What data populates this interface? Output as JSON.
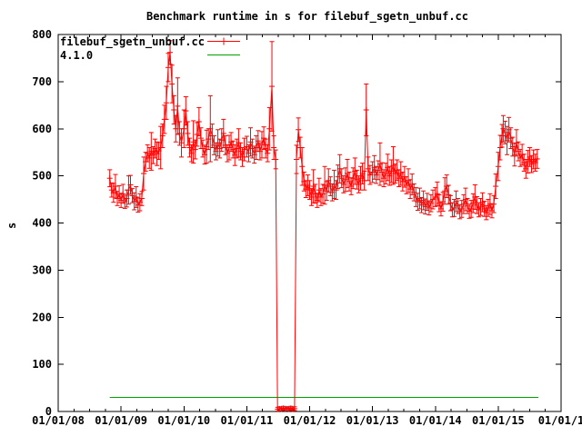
{
  "chart_data": {
    "type": "line",
    "title": "Benchmark runtime in s for filebuf_sgetn_unbuf.cc",
    "xlabel": "",
    "ylabel": "s",
    "ylim": [
      0,
      800
    ],
    "ytick_values": [
      0,
      100,
      200,
      300,
      400,
      500,
      600,
      700,
      800
    ],
    "ytick_labels": [
      "0",
      "100",
      "200",
      "300",
      "400",
      "500",
      "600",
      "700",
      "800"
    ],
    "xlim_years": [
      2008,
      2016
    ],
    "xtick_years": [
      2008,
      2009,
      2010,
      2011,
      2012,
      2013,
      2014,
      2015,
      2016
    ],
    "xtick_labels": [
      "01/01/08",
      "01/01/09",
      "01/01/10",
      "01/01/11",
      "01/01/12",
      "01/01/13",
      "01/01/14",
      "01/01/15",
      "01/01/1"
    ],
    "x_minor_ticks_per_year": 4,
    "grid": false,
    "legend_position": "top-left",
    "axis_color": "#000000",
    "series": [
      {
        "name": "filebuf_sgetn_unbuf.cc",
        "color": "#ff0000",
        "style": "errorlines-plus",
        "points": [
          [
            2008.82,
            495,
            18
          ],
          [
            2008.85,
            470,
            15
          ],
          [
            2008.88,
            464,
            20
          ],
          [
            2008.91,
            478,
            25
          ],
          [
            2008.94,
            452,
            15
          ],
          [
            2008.97,
            461,
            18
          ],
          [
            2009.0,
            448,
            15
          ],
          [
            2009.03,
            462,
            20
          ],
          [
            2009.06,
            445,
            14
          ],
          [
            2009.09,
            452,
            18
          ],
          [
            2009.12,
            470,
            30
          ],
          [
            2009.15,
            481,
            20
          ],
          [
            2009.18,
            458,
            15
          ],
          [
            2009.21,
            446,
            18
          ],
          [
            2009.24,
            455,
            22
          ],
          [
            2009.27,
            438,
            15
          ],
          [
            2009.3,
            444,
            18
          ],
          [
            2009.33,
            452,
            15
          ],
          [
            2009.36,
            505,
            35
          ],
          [
            2009.39,
            530,
            20
          ],
          [
            2009.42,
            548,
            18
          ],
          [
            2009.45,
            538,
            22
          ],
          [
            2009.48,
            552,
            40
          ],
          [
            2009.51,
            544,
            18
          ],
          [
            2009.54,
            558,
            20
          ],
          [
            2009.57,
            547,
            25
          ],
          [
            2009.6,
            553,
            18
          ],
          [
            2009.63,
            560,
            45
          ],
          [
            2009.66,
            585,
            25
          ],
          [
            2009.69,
            620,
            30
          ],
          [
            2009.72,
            655,
            35
          ],
          [
            2009.75,
            730,
            30
          ],
          [
            2009.78,
            762,
            25
          ],
          [
            2009.81,
            695,
            40
          ],
          [
            2009.84,
            640,
            30
          ],
          [
            2009.87,
            600,
            28
          ],
          [
            2009.9,
            648,
            60
          ],
          [
            2009.93,
            590,
            25
          ],
          [
            2009.96,
            570,
            30
          ],
          [
            2010.0,
            600,
            40
          ],
          [
            2010.03,
            638,
            30
          ],
          [
            2010.06,
            590,
            25
          ],
          [
            2010.09,
            560,
            20
          ],
          [
            2010.12,
            548,
            18
          ],
          [
            2010.15,
            572,
            45
          ],
          [
            2010.18,
            556,
            20
          ],
          [
            2010.21,
            588,
            25
          ],
          [
            2010.24,
            615,
            30
          ],
          [
            2010.27,
            580,
            22
          ],
          [
            2010.3,
            558,
            18
          ],
          [
            2010.33,
            545,
            20
          ],
          [
            2010.36,
            562,
            35
          ],
          [
            2010.39,
            578,
            22
          ],
          [
            2010.42,
            600,
            70
          ],
          [
            2010.45,
            585,
            25
          ],
          [
            2010.48,
            565,
            20
          ],
          [
            2010.51,
            552,
            18
          ],
          [
            2010.54,
            570,
            28
          ],
          [
            2010.57,
            558,
            20
          ],
          [
            2010.6,
            576,
            24
          ],
          [
            2010.63,
            590,
            30
          ],
          [
            2010.66,
            565,
            20
          ],
          [
            2010.69,
            548,
            18
          ],
          [
            2010.72,
            560,
            26
          ],
          [
            2010.75,
            572,
            20
          ],
          [
            2010.78,
            556,
            18
          ],
          [
            2010.81,
            544,
            22
          ],
          [
            2010.84,
            558,
            20
          ],
          [
            2010.87,
            570,
            30
          ],
          [
            2010.9,
            552,
            18
          ],
          [
            2010.93,
            540,
            20
          ],
          [
            2010.96,
            556,
            24
          ],
          [
            2011.0,
            562,
            22
          ],
          [
            2011.03,
            548,
            18
          ],
          [
            2011.06,
            572,
            30
          ],
          [
            2011.09,
            558,
            20
          ],
          [
            2011.12,
            545,
            18
          ],
          [
            2011.15,
            560,
            25
          ],
          [
            2011.18,
            574,
            22
          ],
          [
            2011.21,
            552,
            18
          ],
          [
            2011.24,
            566,
            28
          ],
          [
            2011.27,
            580,
            24
          ],
          [
            2011.3,
            558,
            20
          ],
          [
            2011.33,
            548,
            18
          ],
          [
            2011.36,
            600,
            45
          ],
          [
            2011.4,
            690,
            95
          ],
          [
            2011.43,
            560,
            25
          ],
          [
            2011.46,
            535,
            20
          ],
          [
            2011.49,
            5,
            4
          ],
          [
            2011.52,
            6,
            4
          ],
          [
            2011.55,
            5,
            3
          ],
          [
            2011.58,
            7,
            4
          ],
          [
            2011.61,
            5,
            3
          ],
          [
            2011.64,
            6,
            4
          ],
          [
            2011.67,
            5,
            3
          ],
          [
            2011.7,
            7,
            4
          ],
          [
            2011.73,
            5,
            3
          ],
          [
            2011.76,
            6,
            4
          ],
          [
            2011.79,
            535,
            30
          ],
          [
            2011.82,
            598,
            25
          ],
          [
            2011.85,
            560,
            22
          ],
          [
            2011.88,
            520,
            40
          ],
          [
            2011.91,
            488,
            20
          ],
          [
            2011.94,
            472,
            18
          ],
          [
            2011.97,
            480,
            22
          ],
          [
            2012.0,
            470,
            20
          ],
          [
            2012.03,
            455,
            18
          ],
          [
            2012.06,
            478,
            35
          ],
          [
            2012.09,
            462,
            20
          ],
          [
            2012.12,
            448,
            15
          ],
          [
            2012.15,
            470,
            25
          ],
          [
            2012.18,
            455,
            18
          ],
          [
            2012.21,
            462,
            20
          ],
          [
            2012.24,
            480,
            40
          ],
          [
            2012.27,
            468,
            20
          ],
          [
            2012.3,
            490,
            25
          ],
          [
            2012.33,
            478,
            20
          ],
          [
            2012.36,
            465,
            18
          ],
          [
            2012.39,
            482,
            30
          ],
          [
            2012.42,
            470,
            20
          ],
          [
            2012.45,
            498,
            25
          ],
          [
            2012.48,
            515,
            30
          ],
          [
            2012.51,
            495,
            20
          ],
          [
            2012.54,
            482,
            18
          ],
          [
            2012.57,
            492,
            25
          ],
          [
            2012.6,
            505,
            30
          ],
          [
            2012.63,
            488,
            20
          ],
          [
            2012.66,
            478,
            18
          ],
          [
            2012.69,
            495,
            22
          ],
          [
            2012.72,
            510,
            28
          ],
          [
            2012.75,
            492,
            20
          ],
          [
            2012.78,
            482,
            18
          ],
          [
            2012.81,
            495,
            25
          ],
          [
            2012.84,
            505,
            22
          ],
          [
            2012.87,
            490,
            20
          ],
          [
            2012.9,
            640,
            55
          ],
          [
            2012.93,
            515,
            25
          ],
          [
            2012.96,
            502,
            20
          ],
          [
            2013.0,
            508,
            22
          ],
          [
            2013.03,
            518,
            25
          ],
          [
            2013.06,
            502,
            18
          ],
          [
            2013.09,
            512,
            20
          ],
          [
            2013.12,
            525,
            45
          ],
          [
            2013.15,
            508,
            20
          ],
          [
            2013.18,
            495,
            18
          ],
          [
            2013.21,
            505,
            22
          ],
          [
            2013.24,
            518,
            28
          ],
          [
            2013.27,
            500,
            20
          ],
          [
            2013.3,
            510,
            24
          ],
          [
            2013.33,
            522,
            40
          ],
          [
            2013.36,
            505,
            20
          ],
          [
            2013.39,
            512,
            22
          ],
          [
            2013.42,
            495,
            18
          ],
          [
            2013.45,
            505,
            25
          ],
          [
            2013.48,
            488,
            20
          ],
          [
            2013.51,
            498,
            22
          ],
          [
            2013.54,
            480,
            18
          ],
          [
            2013.57,
            490,
            25
          ],
          [
            2013.6,
            472,
            20
          ],
          [
            2013.63,
            482,
            22
          ],
          [
            2013.66,
            465,
            18
          ],
          [
            2013.69,
            455,
            20
          ],
          [
            2013.72,
            445,
            18
          ],
          [
            2013.75,
            452,
            22
          ],
          [
            2013.78,
            438,
            16
          ],
          [
            2013.81,
            448,
            20
          ],
          [
            2013.84,
            435,
            16
          ],
          [
            2013.87,
            445,
            18
          ],
          [
            2013.9,
            432,
            15
          ],
          [
            2013.93,
            442,
            18
          ],
          [
            2013.96,
            450,
            20
          ],
          [
            2014.0,
            455,
            20
          ],
          [
            2014.03,
            462,
            25
          ],
          [
            2014.06,
            442,
            18
          ],
          [
            2014.09,
            430,
            15
          ],
          [
            2014.12,
            445,
            20
          ],
          [
            2014.15,
            468,
            28
          ],
          [
            2014.18,
            478,
            24
          ],
          [
            2014.21,
            460,
            20
          ],
          [
            2014.24,
            442,
            16
          ],
          [
            2014.27,
            428,
            15
          ],
          [
            2014.3,
            432,
            18
          ],
          [
            2014.33,
            446,
            22
          ],
          [
            2014.36,
            436,
            16
          ],
          [
            2014.39,
            424,
            15
          ],
          [
            2014.42,
            430,
            18
          ],
          [
            2014.45,
            440,
            20
          ],
          [
            2014.48,
            450,
            24
          ],
          [
            2014.51,
            436,
            16
          ],
          [
            2014.54,
            425,
            15
          ],
          [
            2014.57,
            430,
            18
          ],
          [
            2014.6,
            442,
            20
          ],
          [
            2014.63,
            455,
            26
          ],
          [
            2014.66,
            438,
            18
          ],
          [
            2014.69,
            428,
            15
          ],
          [
            2014.72,
            434,
            18
          ],
          [
            2014.75,
            444,
            20
          ],
          [
            2014.78,
            430,
            16
          ],
          [
            2014.81,
            422,
            15
          ],
          [
            2014.84,
            432,
            18
          ],
          [
            2014.87,
            440,
            22
          ],
          [
            2014.9,
            426,
            15
          ],
          [
            2014.93,
            440,
            18
          ],
          [
            2014.96,
            478,
            26
          ],
          [
            2015.0,
            520,
            30
          ],
          [
            2015.03,
            560,
            26
          ],
          [
            2015.06,
            585,
            24
          ],
          [
            2015.08,
            600,
            28
          ],
          [
            2015.11,
            592,
            24
          ],
          [
            2015.14,
            575,
            30
          ],
          [
            2015.17,
            598,
            26
          ],
          [
            2015.2,
            580,
            22
          ],
          [
            2015.23,
            562,
            20
          ],
          [
            2015.26,
            545,
            24
          ],
          [
            2015.29,
            570,
            28
          ],
          [
            2015.32,
            552,
            20
          ],
          [
            2015.35,
            538,
            18
          ],
          [
            2015.38,
            545,
            22
          ],
          [
            2015.41,
            528,
            18
          ],
          [
            2015.44,
            515,
            20
          ],
          [
            2015.47,
            530,
            24
          ],
          [
            2015.5,
            540,
            20
          ],
          [
            2015.53,
            525,
            18
          ],
          [
            2015.56,
            535,
            20
          ],
          [
            2015.59,
            528,
            18
          ],
          [
            2015.62,
            536,
            20
          ]
        ]
      },
      {
        "name": "4.1.0",
        "color": "#00a000",
        "style": "line",
        "value": 30,
        "x_start": 2008.82,
        "x_end": 2015.64
      }
    ]
  }
}
